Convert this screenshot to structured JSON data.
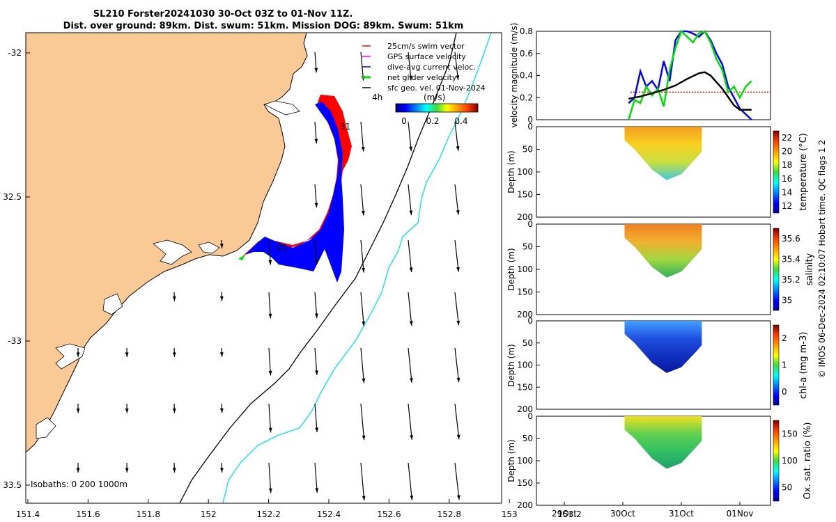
{
  "header": {
    "title_line1": "SL210 Forster20241030 30-Oct 03Z to 01-Nov 11Z.",
    "title_line2": "Dist. over ground: 89km. Dist. swum: 51km. Mission DOG: 89km. Swum: 51km"
  },
  "map": {
    "lon_ticks": [
      "151.4",
      "151.6",
      "151.8",
      "152",
      "152.2",
      "152.4",
      "152.6",
      "152.8",
      "153",
      "153.2"
    ],
    "lat_ticks": [
      "-32",
      "32.5",
      "-33",
      "33.5"
    ],
    "legend": {
      "items": [
        {
          "label": "25cm/s swim vector",
          "color": "#ff0000"
        },
        {
          "label": "GPS surface velocity",
          "color": "#ff00ff"
        },
        {
          "label": "dive-avg current veloc.",
          "color": "#0000ff"
        },
        {
          "label": "net glider velocity",
          "color": "#00e000"
        },
        {
          "label": "sfc geo. vel. 01-Nov-2024",
          "color": "#000000"
        }
      ],
      "interval": "4h",
      "colorbar_unit": "(m/s)",
      "colorbar_ticks": [
        "0",
        "0.2",
        "0.4"
      ]
    },
    "day_labels": [
      "31",
      "01"
    ],
    "isobaths": {
      "label": "Isobaths: 0   200  1000m",
      "color_200": "#000000",
      "color_1000": "#00e5e5"
    },
    "land_color": "#f9c996"
  },
  "panels": {
    "velocity": {
      "ylabel": "velocity magnitude (m/s)",
      "yticks": [
        "0",
        "0.2",
        "0.4",
        "0.6",
        "0.8"
      ],
      "threshold": 0.25
    },
    "temperature": {
      "ylabel": "Depth (m)",
      "cbar_label": "temperature (°C)",
      "cbar_ticks": [
        "12",
        "14",
        "16",
        "18",
        "20",
        "22"
      ]
    },
    "salinity": {
      "ylabel": "Depth (m)",
      "cbar_label": "salinity",
      "cbar_ticks": [
        "35",
        "35.2",
        "35.4",
        "35.6"
      ]
    },
    "chla": {
      "ylabel": "Depth (m)",
      "cbar_label": "chl-a (mg m-3)",
      "cbar_ticks": [
        "0",
        "1",
        "2"
      ]
    },
    "oxygen": {
      "ylabel": "Depth (m)",
      "cbar_label": "Ox. sat. ratio (%)",
      "cbar_ticks": [
        "50",
        "100",
        "150"
      ]
    },
    "depth_ticks": [
      "0",
      "50",
      "100",
      "150",
      "200"
    ],
    "date_ticks": [
      "29Oct",
      "30Oct",
      "31Oct",
      "01Nov"
    ]
  },
  "footer": {
    "credit": "© IMOS 06-Dec-2024 02:10:07 Hobart time. QC flags 1  2"
  },
  "chart_data": [
    {
      "type": "line",
      "title": "velocity magnitude",
      "xlabel": "",
      "ylabel": "velocity magnitude (m/s)",
      "x_units": "days from 30Oct 00:00",
      "ylim": [
        0,
        0.8
      ],
      "series": [
        {
          "name": "dive-avg current veloc.",
          "color": "#0000ff",
          "x": [
            0.1,
            0.2,
            0.3,
            0.4,
            0.5,
            0.6,
            0.7,
            0.8,
            0.9,
            1.0,
            1.1,
            1.2,
            1.3,
            1.4,
            1.5,
            1.6,
            1.7,
            1.8,
            1.9,
            2.0,
            2.1,
            2.2
          ],
          "y": [
            0.15,
            0.2,
            0.44,
            0.3,
            0.35,
            0.27,
            0.53,
            0.35,
            0.72,
            0.8,
            0.8,
            0.78,
            0.75,
            0.8,
            0.72,
            0.6,
            0.5,
            0.3,
            0.2,
            0.1,
            0.05,
            0.0
          ]
        },
        {
          "name": "net glider velocity",
          "color": "#00e000",
          "x": [
            0.1,
            0.2,
            0.3,
            0.4,
            0.5,
            0.6,
            0.7,
            0.8,
            0.9,
            1.0,
            1.1,
            1.2,
            1.3,
            1.4,
            1.5,
            1.6,
            1.7,
            1.8,
            1.9,
            2.0,
            2.1,
            2.2
          ],
          "y": [
            0.0,
            0.18,
            0.15,
            0.3,
            0.22,
            0.28,
            0.12,
            0.45,
            0.65,
            0.8,
            0.75,
            0.7,
            0.78,
            0.8,
            0.7,
            0.55,
            0.45,
            0.25,
            0.3,
            0.2,
            0.3,
            0.35
          ]
        },
        {
          "name": "sfc geo. vel.",
          "color": "#000000",
          "x": [
            0.1,
            0.3,
            0.5,
            0.7,
            0.9,
            1.1,
            1.3,
            1.4,
            1.5,
            1.7,
            1.9,
            2.0,
            2.2
          ],
          "y": [
            0.19,
            0.21,
            0.24,
            0.27,
            0.31,
            0.37,
            0.42,
            0.43,
            0.4,
            0.28,
            0.13,
            0.09,
            0.09
          ]
        }
      ]
    },
    {
      "type": "heatmap",
      "title": "temperature",
      "ylabel": "Depth (m)",
      "ylim": [
        200,
        0
      ],
      "color_range": [
        12,
        23
      ],
      "cbar_label": "temperature (°C)"
    },
    {
      "type": "heatmap",
      "title": "salinity",
      "ylabel": "Depth (m)",
      "ylim": [
        200,
        0
      ],
      "color_range": [
        34.95,
        35.7
      ],
      "cbar_label": "salinity"
    },
    {
      "type": "heatmap",
      "title": "chl-a",
      "ylabel": "Depth (m)",
      "ylim": [
        200,
        0
      ],
      "color_range": [
        0,
        2
      ],
      "cbar_label": "chl-a (mg m-3)"
    },
    {
      "type": "heatmap",
      "title": "oxygen saturation",
      "ylabel": "Depth (m)",
      "ylim": [
        200,
        0
      ],
      "color_range": [
        20,
        170
      ],
      "cbar_label": "Ox. sat. ratio (%)"
    }
  ]
}
